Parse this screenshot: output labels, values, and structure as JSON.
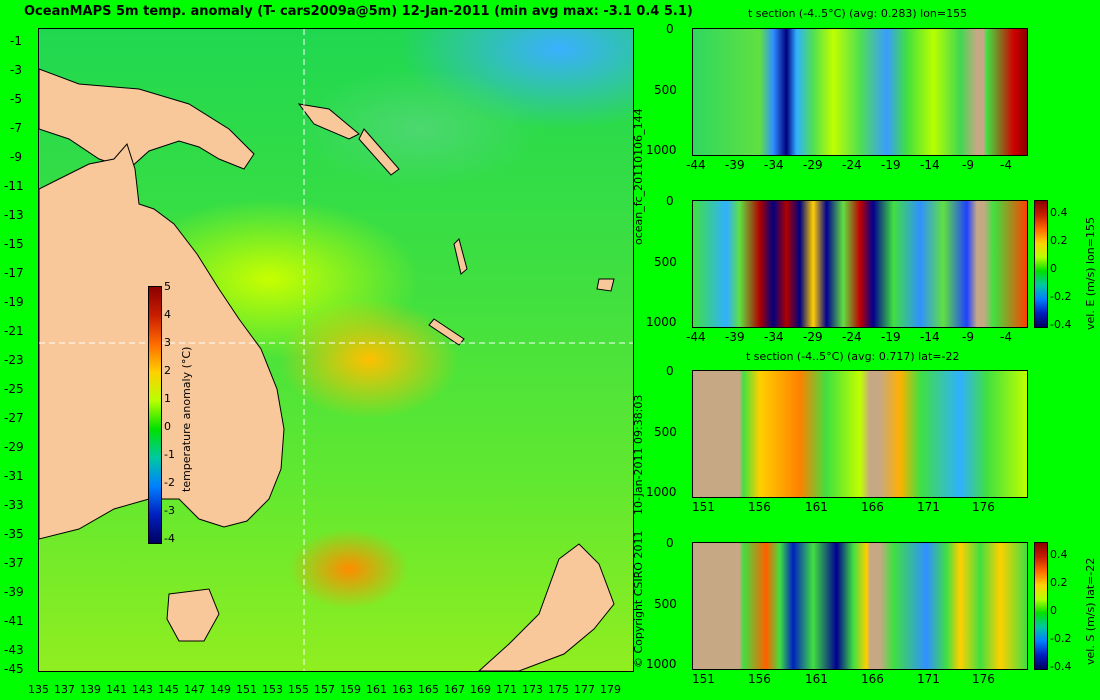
{
  "header": {
    "title": "OceanMAPS 5m temp. anomaly (T- cars2009a@5m) 12-Jan-2011 (min avg max: -3.1 0.4 5.1)"
  },
  "map": {
    "lat_labels": [
      "-1",
      "-3",
      "-5",
      "-7",
      "-9",
      "-11",
      "-13",
      "-15",
      "-17",
      "-19",
      "-21",
      "-23",
      "-25",
      "-27",
      "-29",
      "-31",
      "-33",
      "-35",
      "-37",
      "-39",
      "-41",
      "-43",
      "-45"
    ],
    "lon_labels": [
      "135",
      "137",
      "139",
      "141",
      "143",
      "145",
      "147",
      "149",
      "151",
      "153",
      "155",
      "157",
      "159",
      "161",
      "163",
      "165",
      "167",
      "169",
      "171",
      "173",
      "175",
      "177",
      "179"
    ],
    "colorbar": {
      "label": "temperature anomaly (°C)",
      "ticks": [
        "5",
        "4",
        "3",
        "2",
        "1",
        "0",
        "-1",
        "-2",
        "-3",
        "-4"
      ],
      "colors": [
        "#8b0000",
        "#c81e00",
        "#ff6a00",
        "#ffd000",
        "#b8ff00",
        "#00e000",
        "#00c8a0",
        "#0080ff",
        "#0020c0",
        "#000060"
      ]
    }
  },
  "panels": [
    {
      "title": "t section (-4..5°C) (avg: 0.283) lon=155",
      "y_ticks": [
        "0",
        "500",
        "1000"
      ],
      "x_ticks": [
        "-44",
        "-39",
        "-34",
        "-29",
        "-24",
        "-19",
        "-14",
        "-9",
        "-4"
      ]
    },
    {
      "title": "",
      "y_ticks": [
        "0",
        "500",
        "1000"
      ],
      "x_ticks": [
        "-44",
        "-39",
        "-34",
        "-29",
        "-24",
        "-19",
        "-14",
        "-9",
        "-4"
      ],
      "colorbar_label": "vel. E (m/s) lon=155",
      "colorbar_ticks": [
        "0.4",
        "0.2",
        "0",
        "-0.2",
        "-0.4"
      ]
    },
    {
      "title": "t section (-4..5°C) (avg: 0.717) lat=-22",
      "y_ticks": [
        "0",
        "500",
        "1000"
      ],
      "x_ticks": [
        "151",
        "156",
        "161",
        "166",
        "171",
        "176"
      ]
    },
    {
      "title": "",
      "y_ticks": [
        "0",
        "500",
        "1000"
      ],
      "x_ticks": [
        "151",
        "156",
        "161",
        "166",
        "171",
        "176"
      ],
      "colorbar_label": "vel. S (m/s) lat=-22",
      "colorbar_ticks": [
        "0.4",
        "0.2",
        "0",
        "-0.2",
        "-0.4"
      ]
    }
  ],
  "side_labels": {
    "run_id": "ocean_fc_20110106_144",
    "timestamp": "10-Jan-2011 09:38:03",
    "copyright": "© Copyright CSIRO 2011"
  }
}
